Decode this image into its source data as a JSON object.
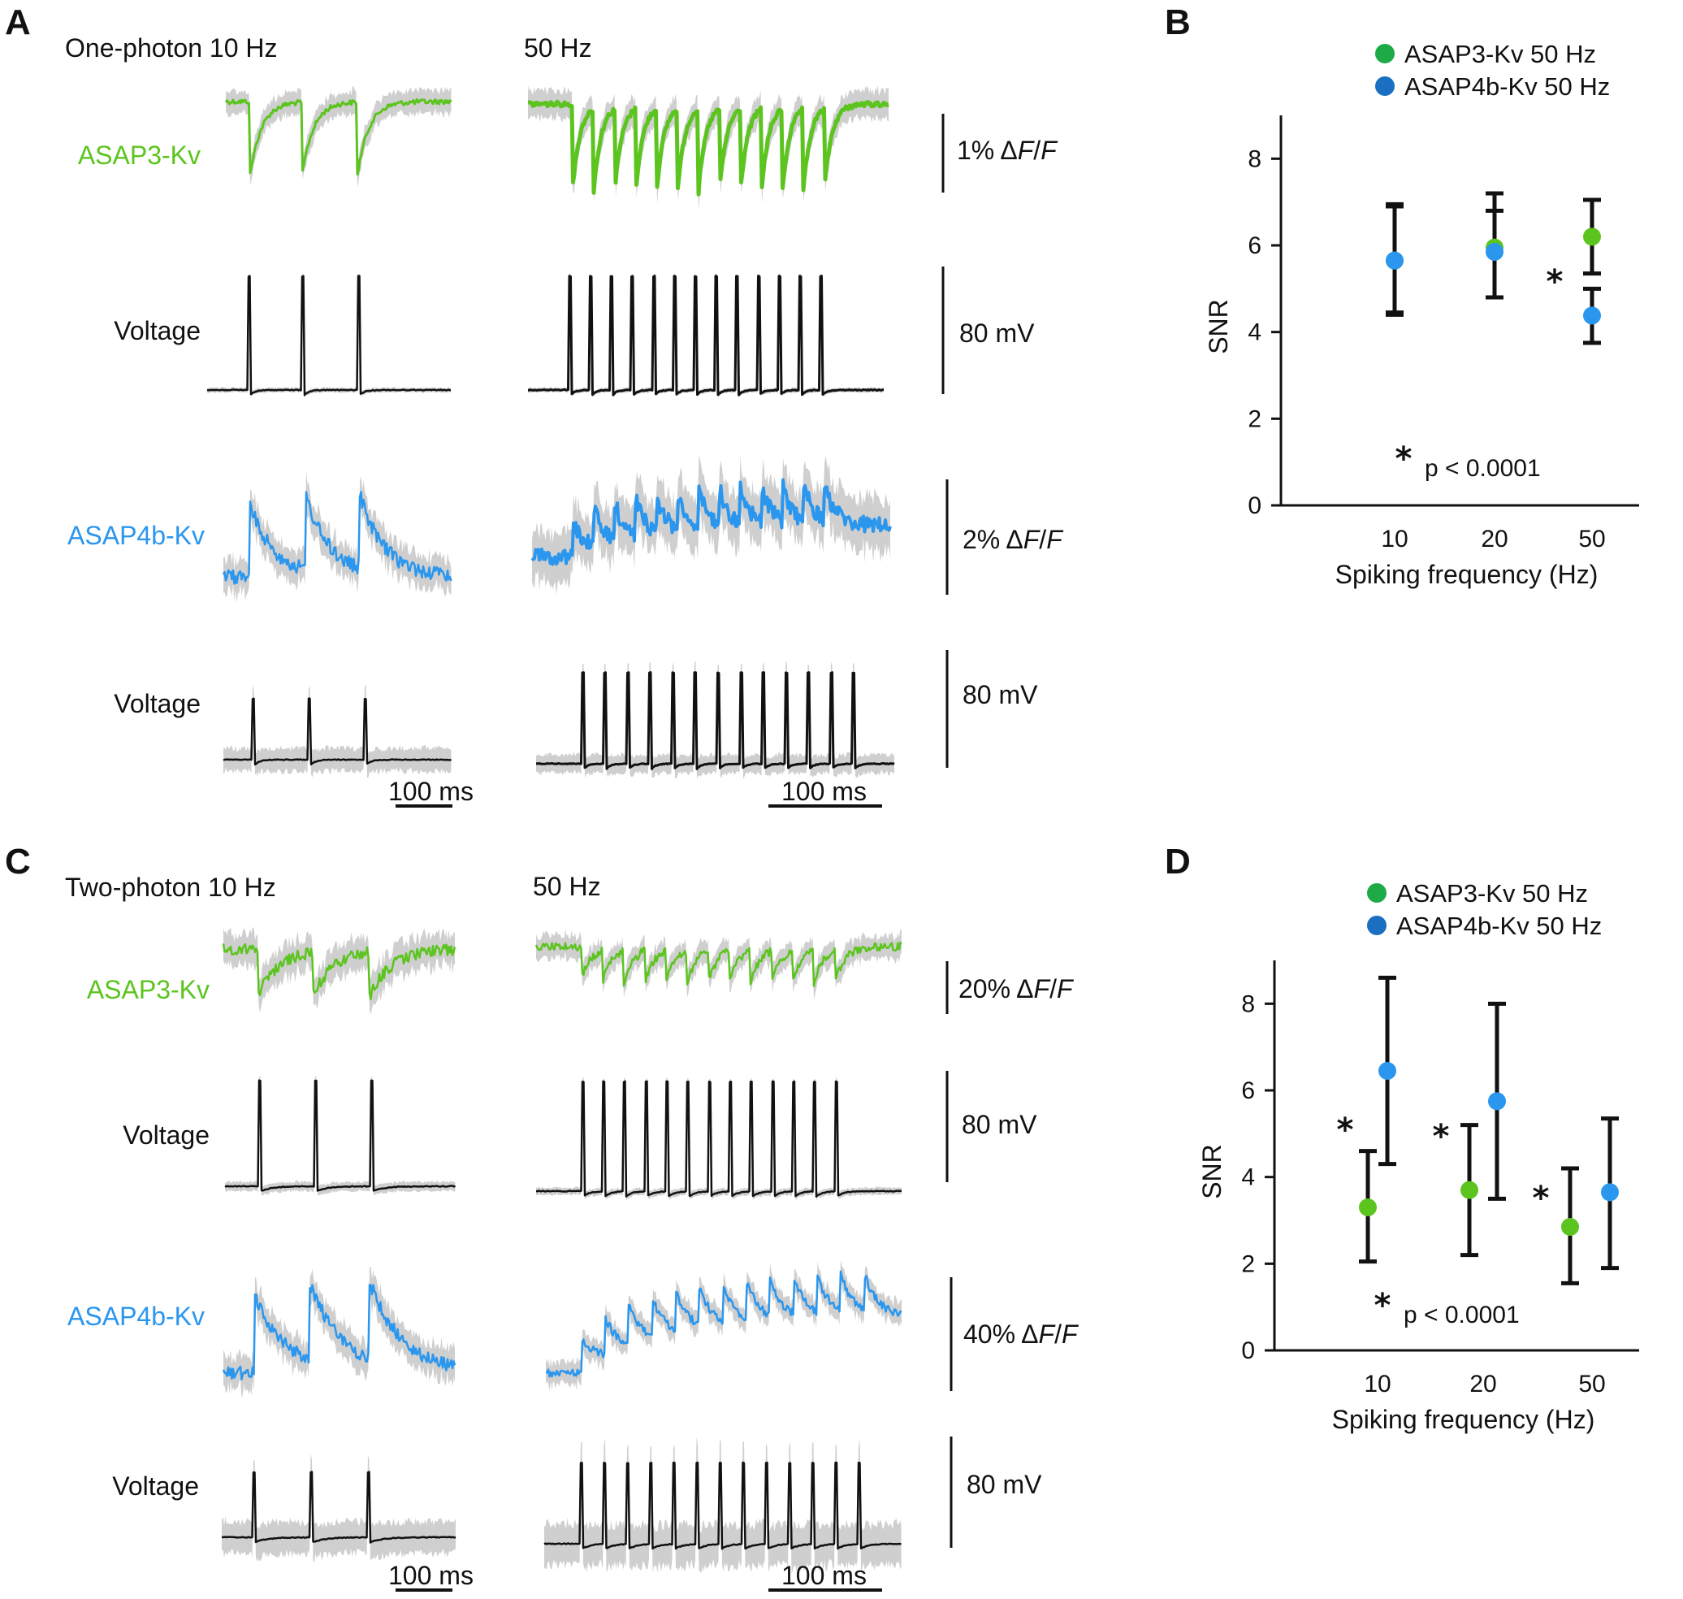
{
  "colors": {
    "green": "#5cc41f",
    "blue": "#2a96ee",
    "black": "#111111",
    "gray": "#cfcfcf",
    "legend_green": "#1faa48",
    "legend_blue": "#1a6fc0"
  },
  "panel_a": {
    "label": "A",
    "header_left": "One-photon 10 Hz",
    "header_right": "50 Hz",
    "rows": [
      {
        "label": "ASAP3-Kv",
        "scale": "1% ΔF/F",
        "scale_prefix": "1% Δ",
        "scale_f1": "F",
        "scale_slash": "/",
        "scale_f2": "F"
      },
      {
        "label": "Voltage",
        "scale": "80 mV"
      },
      {
        "label": "ASAP4b-Kv",
        "scale": "2% ΔF/F",
        "scale_prefix": "2% Δ",
        "scale_f1": "F",
        "scale_slash": "/",
        "scale_f2": "F"
      },
      {
        "label": "Voltage",
        "scale": "80 mV"
      }
    ],
    "time_bar_left": "100 ms",
    "time_bar_right": "100 ms"
  },
  "panel_c": {
    "label": "C",
    "header_left": "Two-photon 10 Hz",
    "header_right": "50 Hz",
    "rows": [
      {
        "label": "ASAP3-Kv",
        "scale": "20% ΔF/F",
        "scale_prefix": "20% Δ",
        "scale_f1": "F",
        "scale_slash": "/",
        "scale_f2": "F"
      },
      {
        "label": "Voltage",
        "scale": "80 mV"
      },
      {
        "label": "ASAP4b-Kv",
        "scale": "40% ΔF/F",
        "scale_prefix": "40% Δ",
        "scale_f1": "F",
        "scale_slash": "/",
        "scale_f2": "F"
      },
      {
        "label": "Voltage",
        "scale": "80 mV"
      }
    ],
    "time_bar_left": "100 ms",
    "time_bar_right": "100 ms"
  },
  "chart_data": [
    {
      "panel": "B",
      "type": "scatter",
      "xlabel": "Spiking frequency (Hz)",
      "ylabel": "SNR",
      "ylim": [
        0,
        9
      ],
      "yticks": [
        0,
        2,
        4,
        6,
        8
      ],
      "categories": [
        "10",
        "20",
        "50"
      ],
      "legend": [
        "ASAP3-Kv 50 Hz",
        "ASAP4b-Kv 50 Hz"
      ],
      "series": [
        {
          "name": "ASAP3-Kv 50 Hz",
          "color": "#5cc41f",
          "values": [
            5.65,
            5.95,
            6.2
          ],
          "err_low": [
            4.4,
            4.8,
            5.35
          ],
          "err_high": [
            6.9,
            7.2,
            7.05
          ]
        },
        {
          "name": "ASAP4b-Kv 50 Hz",
          "color": "#2a96ee",
          "values": [
            5.65,
            5.85,
            4.38
          ],
          "err_low": [
            4.45,
            4.8,
            3.75
          ],
          "err_high": [
            6.95,
            6.8,
            5.0
          ]
        }
      ],
      "significance": [
        "",
        "",
        "*"
      ],
      "annotation_star": "*",
      "annotation_text": "p < 0.0001"
    },
    {
      "panel": "D",
      "type": "scatter",
      "xlabel": "Spiking frequency (Hz)",
      "ylabel": "SNR",
      "ylim": [
        0,
        9
      ],
      "yticks": [
        0,
        2,
        4,
        6,
        8
      ],
      "categories": [
        "10",
        "20",
        "50"
      ],
      "legend": [
        "ASAP3-Kv 50 Hz",
        "ASAP4b-Kv 50 Hz"
      ],
      "series": [
        {
          "name": "ASAP3-Kv 50 Hz",
          "color": "#5cc41f",
          "values": [
            3.3,
            3.7,
            2.85
          ],
          "err_low": [
            2.05,
            2.2,
            1.55
          ],
          "err_high": [
            4.6,
            5.2,
            4.2
          ]
        },
        {
          "name": "ASAP4b-Kv 50 Hz",
          "color": "#2a96ee",
          "values": [
            6.45,
            5.75,
            3.65
          ],
          "err_low": [
            4.3,
            3.5,
            1.9
          ],
          "err_high": [
            8.6,
            8.0,
            5.35
          ]
        }
      ],
      "significance": [
        "*",
        "*",
        "*"
      ],
      "annotation_star": "*",
      "annotation_text": "p < 0.0001"
    }
  ]
}
